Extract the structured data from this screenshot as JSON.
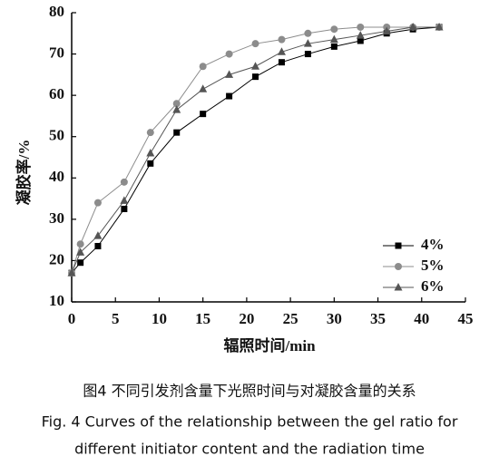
{
  "chart_data": {
    "type": "line",
    "x_label": "辐照时间/min",
    "y_label": "凝胶率/%",
    "x": [
      0,
      1,
      3,
      6,
      9,
      12,
      15,
      18,
      21,
      24,
      27,
      30,
      33,
      36,
      39,
      42
    ],
    "series": [
      {
        "name": "4%",
        "color": "#000000",
        "marker": "square",
        "values": [
          17,
          19.5,
          23.5,
          32.5,
          43.5,
          51,
          55.5,
          59.8,
          64.5,
          68,
          70,
          71.8,
          73.2,
          75,
          76,
          76.5
        ]
      },
      {
        "name": "5%",
        "color": "#8c8c8c",
        "marker": "circle",
        "values": [
          17,
          24,
          34,
          39,
          51,
          58,
          67,
          70,
          72.5,
          73.5,
          75,
          76,
          76.5,
          76.5,
          76.5,
          76.5
        ]
      },
      {
        "name": "6%",
        "color": "#555555",
        "marker": "triangle",
        "values": [
          17,
          22,
          26,
          34.5,
          46,
          56.5,
          61.5,
          65,
          67,
          70.5,
          72.5,
          73.5,
          74.5,
          75.5,
          76.5,
          76.5
        ]
      }
    ],
    "xlim": [
      0,
      45
    ],
    "xticks": [
      0,
      5,
      10,
      15,
      20,
      25,
      30,
      35,
      40,
      45
    ],
    "ylim": [
      10,
      80
    ],
    "yticks": [
      10,
      20,
      30,
      40,
      50,
      60,
      70,
      80
    ],
    "legend": "lower right",
    "caption_cn": "图4  不同引发剂含量下光照时间与对凝胶含量的关系",
    "caption_en": [
      "Fig. 4 Curves of the relationship between the gel ratio for",
      "different initiator content and the radiation time"
    ]
  }
}
